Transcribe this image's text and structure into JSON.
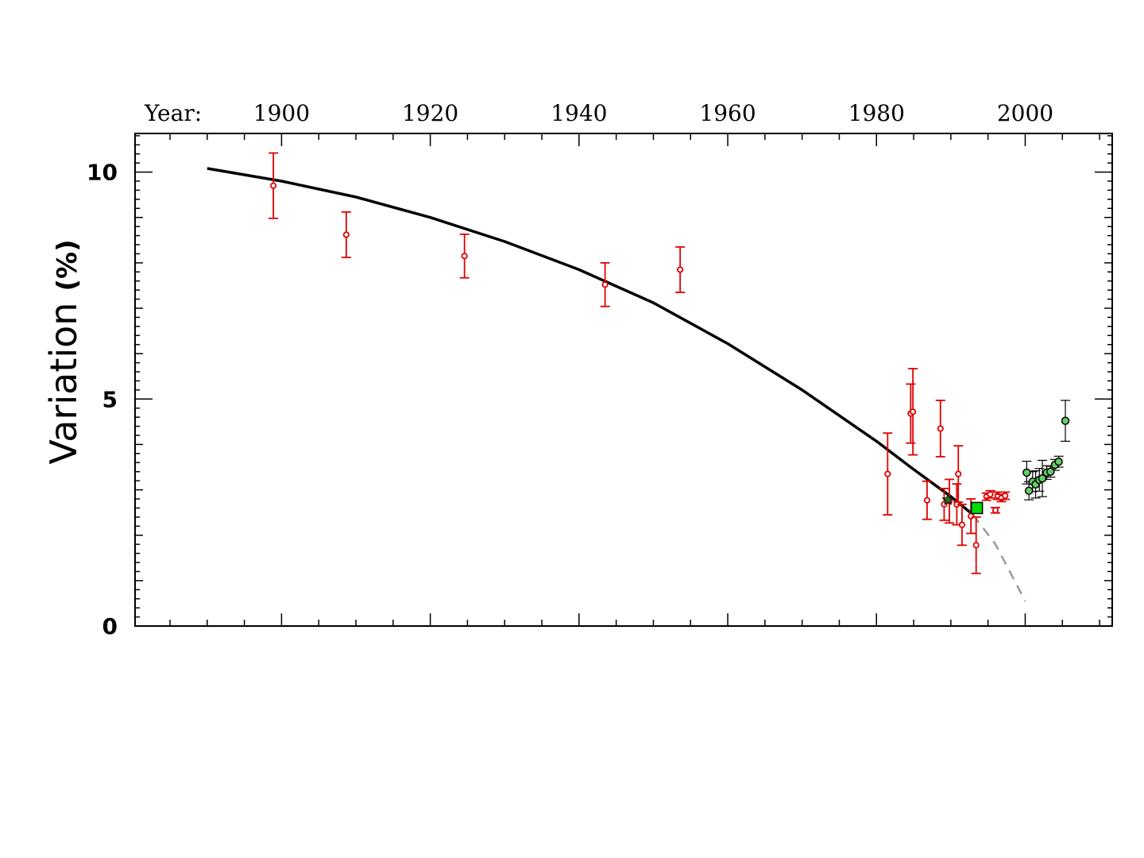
{
  "chart_data": {
    "type": "scatter",
    "title": "",
    "xlabel_prefix": "Year:",
    "ylabel": "Variation",
    "ylabel_unit": "(%)",
    "xlim": [
      1880.3,
      2011.7
    ],
    "ylim": [
      0,
      10.85
    ],
    "x_ticks": [
      1900,
      1920,
      1940,
      1960,
      1980,
      2000
    ],
    "y_ticks": [
      0,
      5,
      10
    ],
    "colors": {
      "fit": "#000000",
      "extrapolation": "#999999",
      "red_points": "#e00000",
      "green_points": "#66cc66",
      "square": "#00dd00"
    },
    "fit_curve": {
      "name": "",
      "x": [
        1890,
        1900,
        1910,
        1920,
        1930,
        1940,
        1950,
        1960,
        1970,
        1980,
        1985,
        1990,
        1993
      ],
      "y": [
        10.08,
        9.8,
        9.45,
        9.0,
        8.47,
        7.85,
        7.12,
        6.22,
        5.2,
        4.07,
        3.45,
        2.85,
        2.45
      ]
    },
    "extrapolation_curve": {
      "x": [
        1993,
        1996,
        2000
      ],
      "y": [
        2.45,
        1.8,
        0.55
      ]
    },
    "red_points": [
      {
        "x": 1898.9,
        "y": 9.7,
        "err": 0.72
      },
      {
        "x": 1908.7,
        "y": 8.62,
        "err": 0.5
      },
      {
        "x": 1924.6,
        "y": 8.15,
        "err": 0.48
      },
      {
        "x": 1943.5,
        "y": 7.52,
        "err": 0.48
      },
      {
        "x": 1953.6,
        "y": 7.85,
        "err": 0.5
      },
      {
        "x": 1981.5,
        "y": 3.35,
        "err": 0.9
      },
      {
        "x": 1984.6,
        "y": 4.68,
        "err": 0.65
      },
      {
        "x": 1984.9,
        "y": 4.72,
        "err": 0.95
      },
      {
        "x": 1986.8,
        "y": 2.77,
        "err": 0.42
      },
      {
        "x": 1988.6,
        "y": 4.35,
        "err": 0.62
      },
      {
        "x": 1989.1,
        "y": 2.68,
        "err": 0.35
      },
      {
        "x": 1989.8,
        "y": 2.75,
        "err": 0.48
      },
      {
        "x": 1990.8,
        "y": 2.68,
        "err": 0.45
      },
      {
        "x": 1991.0,
        "y": 3.35,
        "err": 0.62
      },
      {
        "x": 1991.5,
        "y": 2.23,
        "err": 0.45
      },
      {
        "x": 1992.7,
        "y": 2.42,
        "err": 0.38
      },
      {
        "x": 1993.4,
        "y": 1.78,
        "err": 0.62
      },
      {
        "x": 1994.8,
        "y": 2.85,
        "err": 0.08
      },
      {
        "x": 1995.3,
        "y": 2.9,
        "err": 0.08
      },
      {
        "x": 1996.0,
        "y": 2.55,
        "err": 0.06
      },
      {
        "x": 1996.3,
        "y": 2.87,
        "err": 0.08
      },
      {
        "x": 1996.8,
        "y": 2.82,
        "err": 0.08
      },
      {
        "x": 1997.3,
        "y": 2.87,
        "err": 0.08
      }
    ],
    "green_points": [
      {
        "x": 2000.2,
        "y": 3.38,
        "err": 0.25
      },
      {
        "x": 2000.5,
        "y": 2.98,
        "err": 0.2
      },
      {
        "x": 2001.0,
        "y": 3.18,
        "err": 0.22
      },
      {
        "x": 2001.4,
        "y": 3.12,
        "err": 0.3
      },
      {
        "x": 2001.9,
        "y": 3.22,
        "err": 0.25
      },
      {
        "x": 2002.3,
        "y": 3.25,
        "err": 0.4
      },
      {
        "x": 2002.9,
        "y": 3.38,
        "err": 0.15
      },
      {
        "x": 2003.4,
        "y": 3.4,
        "err": 0.12
      },
      {
        "x": 2004.0,
        "y": 3.55,
        "err": 0.12
      },
      {
        "x": 2004.5,
        "y": 3.62,
        "err": 0.12
      },
      {
        "x": 2005.4,
        "y": 4.52,
        "err": 0.45
      }
    ],
    "star_point": {
      "x": 1989.6,
      "y": 2.78
    },
    "square_point": {
      "x": 1993.5,
      "y": 2.6
    }
  }
}
